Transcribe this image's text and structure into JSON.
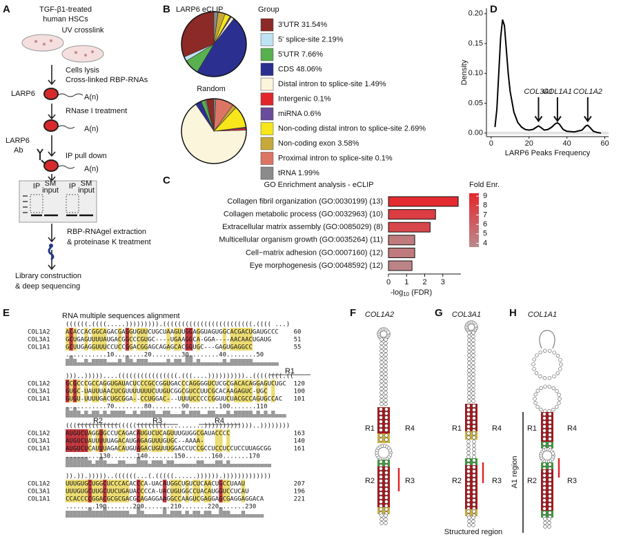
{
  "panel_labels": [
    "A",
    "B",
    "C",
    "D",
    "E",
    "F",
    "G",
    "H"
  ],
  "panel_a": {
    "texts": [
      "TGF-β1-treated",
      "human HSCs",
      "UV crosslink",
      "Cells lysis",
      "Cross-linked RBP-RNAs",
      "LARP6",
      "A(n)",
      "RNase I treatment",
      "A(n)",
      "LARP6",
      "Ab",
      "IP pull down",
      "A(n)",
      "IP",
      "SM",
      "input",
      "IP",
      "SM",
      "input",
      "RBP-RNAgel extraction",
      "& proteinase K treatment",
      "Library construction",
      "& deep sequencing"
    ]
  },
  "chart_data": [
    {
      "type": "pie",
      "title": "LARP6 eCLIP",
      "legend_title": "Group",
      "categories": [
        "3'UTR 31.54%",
        "5' splice-site 2.19%",
        "5'UTR 7.66%",
        "CDS 48.06%",
        "Distal intron to splice-site 1.49%",
        "Intergenic 0.1%",
        "miRNA 0.6%",
        "Non-coding distal intron to splice-site 2.69%",
        "Non-coding exon 3.58%",
        "Proximal intron to splice-site 0.1%",
        "tRNA 1.99%"
      ],
      "values": [
        31.54,
        2.19,
        7.66,
        48.06,
        1.49,
        0.1,
        0.6,
        2.69,
        3.58,
        0.1,
        1.99
      ],
      "colors": [
        "#8b2a26",
        "#bfe3f2",
        "#58b04f",
        "#2b2f8f",
        "#fbf5dc",
        "#e0262b",
        "#6a4c9c",
        "#f6e61a",
        "#c6a93a",
        "#dd7565",
        "#8a8a8a"
      ]
    },
    {
      "type": "pie",
      "title": "Random",
      "values": [
        4,
        0.5,
        2,
        3,
        66,
        1,
        0.5,
        11,
        2,
        9,
        1
      ],
      "colors": [
        "#8b2a26",
        "#bfe3f2",
        "#58b04f",
        "#2b2f8f",
        "#fbf5dc",
        "#e0262b",
        "#6a4c9c",
        "#f6e61a",
        "#c6a93a",
        "#dd7565",
        "#8a8a8a"
      ]
    },
    {
      "type": "bar",
      "orientation": "horizontal",
      "title": "GO Enrichment analysis - eCLIP",
      "categories": [
        "Collagen fibril organization (GO:0030199) (13)",
        "Collagen metabolic process (GO:0032963) (10)",
        "Extracellular matrix assembly (GO:0085029) (8)",
        "Multicellular organism growth (GO:0035264) (11)",
        "Cell−matrix adhesion (GO:0007160) (12)",
        "Eye morphogenesis (GO:0048592) (12)"
      ],
      "values": [
        3.85,
        2.6,
        2.3,
        1.45,
        1.45,
        1.3
      ],
      "fold_enrichment": [
        9,
        8,
        7.5,
        4.5,
        4.5,
        4
      ],
      "xlim": [
        0,
        4
      ],
      "xticks": [
        0,
        1,
        2,
        3
      ],
      "xlabel_parts": [
        "-log",
        "10",
        " (FDR)"
      ],
      "colorbar": {
        "title": "Fold Enr.",
        "lim": [
          3.6,
          9.3
        ],
        "ticks": [
          4,
          5,
          6,
          7,
          8,
          9
        ],
        "colors": [
          "#b98a8e",
          "#e5262b"
        ]
      }
    },
    {
      "type": "line",
      "ylabel": "Density",
      "xlabel": "LARP6 Peaks Frequency",
      "color": "#000000",
      "x": [
        2,
        3,
        4,
        5,
        6,
        7,
        8,
        9,
        10,
        12,
        14,
        16,
        18,
        20,
        22,
        24,
        25,
        26,
        28,
        30,
        32,
        34,
        35,
        36,
        38,
        40,
        44,
        48,
        50,
        51,
        52,
        54,
        56,
        58
      ],
      "values": [
        0.01,
        0.04,
        0.1,
        0.16,
        0.19,
        0.18,
        0.14,
        0.1,
        0.07,
        0.035,
        0.018,
        0.01,
        0.006,
        0.005,
        0.006,
        0.01,
        0.012,
        0.01,
        0.005,
        0.006,
        0.01,
        0.016,
        0.017,
        0.015,
        0.006,
        0.003,
        0.002,
        0.005,
        0.012,
        0.013,
        0.01,
        0.003,
        0.001,
        0
      ],
      "xlim": [
        -2.5,
        62
      ],
      "ylim": [
        -0.006,
        0.209
      ],
      "xticks": [
        0,
        20,
        40,
        60
      ],
      "yticks": [
        {
          "value": 0,
          "label": "0.00"
        },
        0.05,
        {
          "value": 0.1,
          "label": "0.10"
        },
        0.15,
        {
          "value": 0.2,
          "label": "0.20"
        }
      ],
      "annotations": [
        {
          "text": "COL3A1",
          "x": 25
        },
        {
          "text": "COL1A1",
          "x": 35
        },
        {
          "text": "COL1A2",
          "x": 51
        }
      ],
      "annotation_color": "#e0262b"
    }
  ],
  "panel_e": {
    "title": "RNA multiple sequences alignment",
    "region_labels": [
      "R1",
      "R2",
      "R3",
      "R4"
    ],
    "blocks": [
      {
        "structure": "((((((.((((.....))))))))).((((((((((((((((((((((((.((((  ...)",
        "ruler": "...........10........20........30........40........50",
        "rows": [
          {
            "name": "COL1A2",
            "sequence": "ACACCACGGCAGACGAGGUGUUCUGCUAAGUUGGAGGUAGUGGCACGACUGAUGCCC",
            "end": 60
          },
          {
            "name": "COL3A1",
            "sequence": "GCUGAGUUUUAUGACGGCCCGUGC----UGAAGGCA-GGA----AACAACUGAUG",
            "end": 51
          },
          {
            "name": "COL1A1",
            "sequence": "GCUUGAGGUUUCCUCCGGACGGAGCAGAGCACGGUGC---GAGUGAGGCC",
            "end": 55
          }
        ]
      },
      {
        "structure": ")))..)))))....((((((((((((((((.(((....))))))))))..((((((((.((",
        "ruler": "...........70........80........90........100.......110",
        "rows": [
          {
            "name": "COL1A2",
            "sequence": "GCGCCCGCCAGGUGAUACUCCCGCCGGUGACCCAGGGGUCUCGCGACACAGGAGUCUGC",
            "end": 120
          },
          {
            "name": "COL3A1",
            "sequence": "GUGC-UAUUUAACUCGUUUUUUUCUUGUCGGCGUCCUUCGCACAAGAGUC-UGC",
            "end": 100
          },
          {
            "name": "COL1A1",
            "sequence": "GUGU-UUUUGACUGCGGA--CCUGGAC---UUUUCCCCCGGUUCUACGCCAGUGCCAC",
            "end": 101
          }
        ]
      },
      {
        "structure": "(((((((((((((((((((((((((((..........)))))))))))))..))))))))",
        "ruler": ".........130.......140.......150.......160.......170",
        "rows": [
          {
            "name": "COL1A2",
            "sequence": "AUGUCUAGGUGCCUCAGACAUGUCUCAGUUUGUGGCGAUACCCC",
            "end": 163
          },
          {
            "name": "COL3A1",
            "sequence": "AUGUCUAUUUUUAGACAUGAGAGUUUGUGC--AAAA-",
            "end": 140
          },
          {
            "name": "COL1A1",
            "sequence": "AUGUCUCAUUUAGACAUGUAGACUGUUUGGACCUCCGCCUCCUCCUCCUUAGCGG",
            "end": 161
          }
        ]
      },
      {
        "structure": ")).)).)))))..((((((...(.(((((......)))))).)))))))))))))",
        "ruler": "........190.......200.......210.......220.......230",
        "rows": [
          {
            "name": "COL1A2",
            "sequence": "UUUGUGCUGGCUCCCACACCCA-UACAUGGCUGUCUCAACUGCCUAAU",
            "end": 207
          },
          {
            "name": "COL3A1",
            "sequence": "UUUGUGCUUGCUUCUGAUACCCCA-UACUGUGGCCUACAUGGUCCUCAU",
            "end": 196
          },
          {
            "name": "COL1A1",
            "sequence": "CCACCCCGGACGCGCGACGCAGAGGAAGGCCAAGUCGAGGAGCGAGGAGGACA",
            "end": 221
          }
        ]
      }
    ]
  },
  "panel_fgh": {
    "titles": [
      "COL1A2",
      "COL3A1",
      "COL1A1"
    ],
    "region_labels": [
      "R1",
      "R4",
      "R2",
      "R3"
    ],
    "a1_label": "A1 region",
    "caption": "Structured region"
  }
}
